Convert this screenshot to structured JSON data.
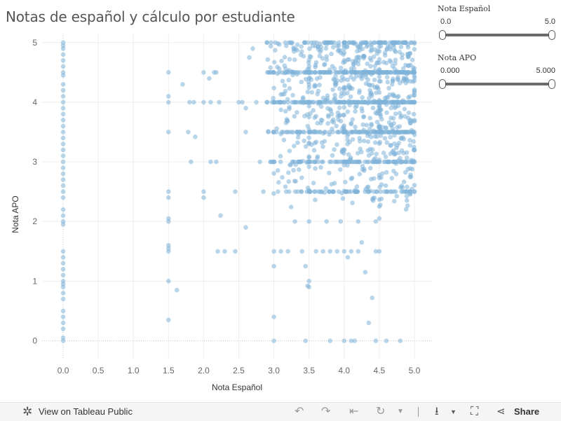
{
  "title": "Notas de español y cálculo por estudiante",
  "filters": [
    {
      "label": "Nota Español",
      "min_label": "0.0",
      "max_label": "5.0"
    },
    {
      "label": "Nota APO",
      "min_label": "0.000",
      "max_label": "5.000"
    }
  ],
  "toolbar": {
    "view_label": "View on Tableau Public",
    "share_label": "Share",
    "icons": [
      "tableau-logo-icon",
      "undo-icon",
      "redo-icon",
      "revert-icon",
      "refresh-icon",
      "download-icon",
      "fullscreen-icon",
      "share-icon"
    ]
  },
  "colors": {
    "point": "#7fb3d9",
    "grid": "#eeeeee",
    "zero_line": "#c8c8c8"
  },
  "chart_data": {
    "type": "scatter",
    "title": "Notas de español y cálculo por estudiante",
    "xlabel": "Nota Español",
    "ylabel": "Nota APO",
    "xlim": [
      -0.3,
      5.25
    ],
    "ylim": [
      -0.3,
      5.15
    ],
    "xticks": [
      "0.0",
      "0.5",
      "1.0",
      "1.5",
      "2.0",
      "2.5",
      "3.0",
      "3.5",
      "4.0",
      "4.5",
      "5.0"
    ],
    "yticks": [
      "0",
      "1",
      "2",
      "3",
      "4",
      "5"
    ],
    "grid": true,
    "legend": "none",
    "notes": "Dense cluster between Nota Español 3.0–5.0 and Nota APO 2.5–5.0 with horizontal banding at 3.0, 3.5, 4.0, 4.5 and 5.0; many students at Nota Español 0.0 spread across Nota APO 0–5.",
    "points": [
      [
        0,
        5
      ],
      [
        0,
        4.95
      ],
      [
        0,
        4.9
      ],
      [
        0,
        4.8
      ],
      [
        0,
        4.7
      ],
      [
        0,
        4.6
      ],
      [
        0,
        4.5
      ],
      [
        0,
        4.45
      ],
      [
        0,
        4.3
      ],
      [
        0,
        4.2
      ],
      [
        0,
        4.1
      ],
      [
        0,
        4
      ],
      [
        0,
        3.9
      ],
      [
        0,
        3.8
      ],
      [
        0,
        3.7
      ],
      [
        0,
        3.6
      ],
      [
        0,
        3.5
      ],
      [
        0,
        3.4
      ],
      [
        0,
        3.3
      ],
      [
        0,
        3.2
      ],
      [
        0,
        3.1
      ],
      [
        0,
        3
      ],
      [
        0,
        2.9
      ],
      [
        0,
        2.8
      ],
      [
        0,
        2.7
      ],
      [
        0,
        2.6
      ],
      [
        0,
        2.5
      ],
      [
        0,
        2.4
      ],
      [
        0,
        2.2
      ],
      [
        0,
        2.1
      ],
      [
        0,
        2
      ],
      [
        0,
        1.95
      ],
      [
        0,
        1.5
      ],
      [
        0,
        1.4
      ],
      [
        0,
        1.3
      ],
      [
        0,
        1.2
      ],
      [
        0,
        1.1
      ],
      [
        0,
        1
      ],
      [
        0,
        0.95
      ],
      [
        0,
        0.9
      ],
      [
        0,
        0.8
      ],
      [
        0,
        0.7
      ],
      [
        0,
        0.5
      ],
      [
        0,
        0.4
      ],
      [
        0,
        0.3
      ],
      [
        0,
        0.2
      ],
      [
        0,
        0.05
      ],
      [
        0,
        0
      ],
      [
        1.5,
        4.5
      ],
      [
        1.5,
        4.1
      ],
      [
        1.5,
        4
      ],
      [
        1.5,
        3.5
      ],
      [
        1.5,
        2.5
      ],
      [
        1.5,
        2.4
      ],
      [
        1.5,
        2.05
      ],
      [
        1.5,
        2
      ],
      [
        1.5,
        1.6
      ],
      [
        1.5,
        1.55
      ],
      [
        1.5,
        1.5
      ],
      [
        1.5,
        1
      ],
      [
        1.5,
        0.35
      ],
      [
        1.62,
        0.85
      ],
      [
        1.7,
        4.3
      ],
      [
        1.78,
        3.5
      ],
      [
        1.8,
        4
      ],
      [
        1.82,
        3
      ],
      [
        1.86,
        4
      ],
      [
        1.88,
        3.42
      ],
      [
        2,
        4.5
      ],
      [
        2,
        4
      ],
      [
        2,
        2.5
      ],
      [
        2,
        2.4
      ],
      [
        2.08,
        4.4
      ],
      [
        2.1,
        4
      ],
      [
        2.1,
        3
      ],
      [
        2.15,
        4.5
      ],
      [
        2.18,
        4.5
      ],
      [
        2.18,
        3
      ],
      [
        2.2,
        1.5
      ],
      [
        2.22,
        4
      ],
      [
        2.24,
        2.1
      ],
      [
        2.3,
        1.5
      ],
      [
        2.45,
        1.5
      ],
      [
        2.45,
        2.5
      ],
      [
        2.5,
        4
      ],
      [
        2.55,
        4
      ],
      [
        2.6,
        3.9
      ],
      [
        2.6,
        3.5
      ],
      [
        2.6,
        1.9
      ],
      [
        2.65,
        4.75
      ],
      [
        2.7,
        4.9
      ],
      [
        2.75,
        4
      ],
      [
        2.8,
        3
      ],
      [
        2.85,
        2.5
      ],
      [
        2.9,
        5
      ],
      [
        2.9,
        4
      ],
      [
        2.92,
        3.5
      ],
      [
        2.95,
        3
      ]
    ],
    "cluster": {
      "x_range": [
        2.65,
        5.0
      ],
      "y_range": [
        1.2,
        5.0
      ],
      "count": 1400,
      "bands": [
        2.5,
        3.0,
        3.5,
        4.0,
        4.5,
        5.0
      ],
      "x_bands": [
        3.0,
        3.5,
        4.0,
        4.5,
        5.0
      ]
    },
    "sparse_low": [
      [
        3,
        1.5
      ],
      [
        3,
        1.25
      ],
      [
        3,
        0.4
      ],
      [
        3,
        0
      ],
      [
        3.1,
        1.5
      ],
      [
        3.2,
        1.5
      ],
      [
        3.3,
        2
      ],
      [
        3.4,
        1.5
      ],
      [
        3.45,
        1.25
      ],
      [
        3.45,
        0
      ],
      [
        3.5,
        1
      ],
      [
        3.5,
        0.9
      ],
      [
        3.48,
        0.92
      ],
      [
        3.5,
        2
      ],
      [
        3.6,
        1.5
      ],
      [
        3.7,
        1.5
      ],
      [
        3.75,
        2
      ],
      [
        3.8,
        1.5
      ],
      [
        3.8,
        0
      ],
      [
        3.9,
        1.5
      ],
      [
        3.95,
        2
      ],
      [
        4,
        1.5
      ],
      [
        4,
        0
      ],
      [
        4.05,
        1.4
      ],
      [
        4.1,
        1.5
      ],
      [
        4.1,
        0
      ],
      [
        4.15,
        0
      ],
      [
        4.2,
        1.5
      ],
      [
        4.2,
        2
      ],
      [
        4.25,
        1.65
      ],
      [
        4.3,
        1.15
      ],
      [
        4.35,
        0.3
      ],
      [
        4.4,
        0.72
      ],
      [
        4.45,
        1.5
      ],
      [
        4.45,
        0
      ],
      [
        4.5,
        1.5
      ],
      [
        4.5,
        2.05
      ],
      [
        4.6,
        0
      ],
      [
        4.8,
        0
      ],
      [
        4.45,
        2
      ]
    ]
  }
}
